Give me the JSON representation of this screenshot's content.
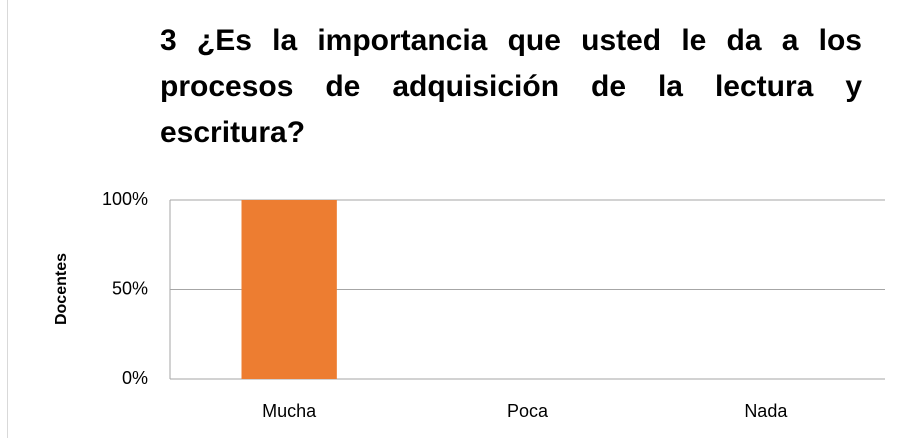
{
  "chart_data": {
    "type": "bar",
    "title": "3 ¿Es la importancia que usted le da a los procesos de adquisición de la lectura y escritura?",
    "ylabel": "Docentes",
    "categories": [
      "Mucha",
      "Poca",
      "Nada"
    ],
    "values": [
      100,
      0,
      0
    ],
    "color": "#ed7d31",
    "ylim": [
      0,
      100
    ],
    "yticks": [
      {
        "value": 0,
        "label": "0%"
      },
      {
        "value": 50,
        "label": "50%"
      },
      {
        "value": 100,
        "label": "100%"
      }
    ],
    "grid": true
  }
}
